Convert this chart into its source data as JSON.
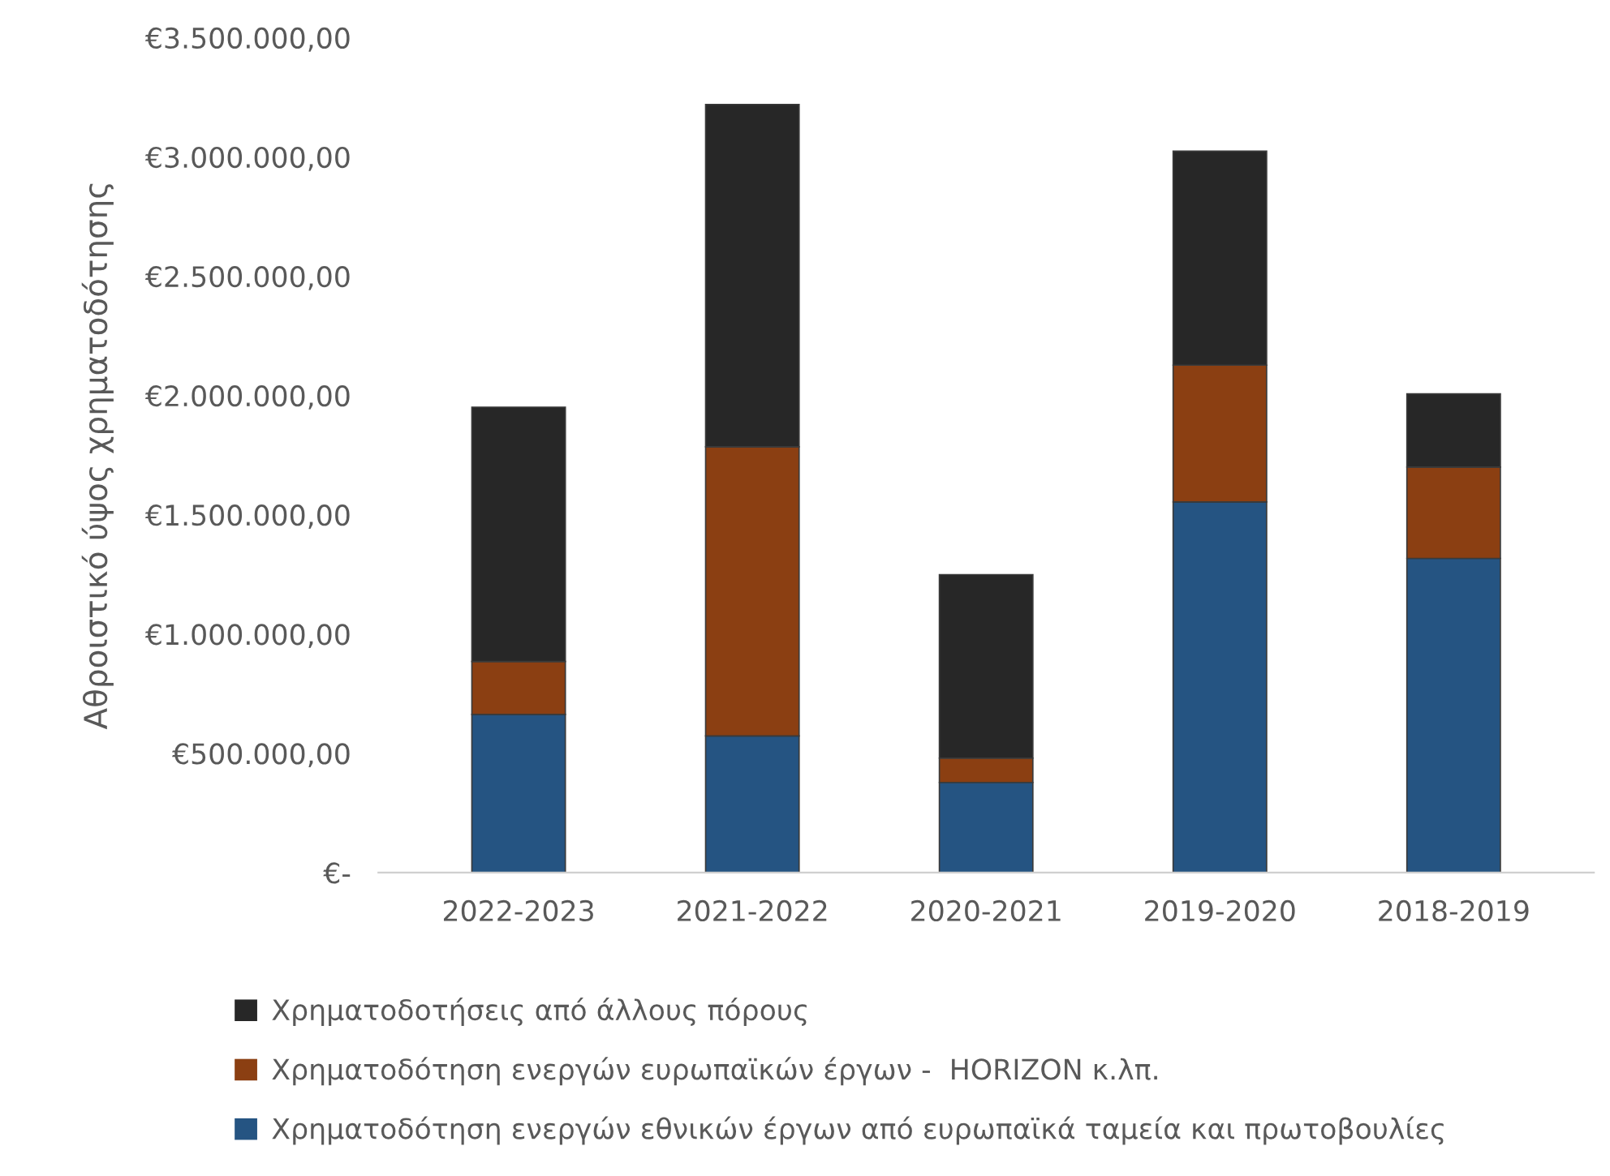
{
  "chart_data": {
    "type": "bar",
    "stacked": true,
    "ylabel": "Αθροιστικό ύψος χρηματοδότησης",
    "categories": [
      "2022-2023",
      "2021-2022",
      "2020-2021",
      "2019-2020",
      "2018-2019"
    ],
    "series": [
      {
        "name": "Χρηματοδότηση ενεργών εθνικών έργων από ευρωπαϊκά ταμεία και πρωτοβουλίες",
        "color": "#255482",
        "values": [
          663000,
          573000,
          378000,
          1554000,
          1317000
        ]
      },
      {
        "name": "Χρηματοδότηση ενεργών ευρωπαϊκών έργων -  HORIZON κ.λπ.",
        "color": "#8b3f12",
        "values": [
          222000,
          1212000,
          102000,
          573000,
          383000
        ]
      },
      {
        "name": "Χρηματοδοτήσεις από άλλους πόρους",
        "color": "#272727",
        "values": [
          1066000,
          1435000,
          769000,
          897000,
          307000
        ]
      }
    ],
    "ylim": [
      0,
      3500000
    ],
    "yticks": [
      {
        "value": 0,
        "label": "€-"
      },
      {
        "value": 500000,
        "label": "€500.000,00"
      },
      {
        "value": 1000000,
        "label": "€1.000.000,00"
      },
      {
        "value": 1500000,
        "label": "€1.500.000,00"
      },
      {
        "value": 2000000,
        "label": "€2.000.000,00"
      },
      {
        "value": 2500000,
        "label": "€2.500.000,00"
      },
      {
        "value": 3000000,
        "label": "€3.000.000,00"
      },
      {
        "value": 3500000,
        "label": "€3.500.000,00"
      }
    ],
    "grid": false,
    "legend": "bottom"
  }
}
